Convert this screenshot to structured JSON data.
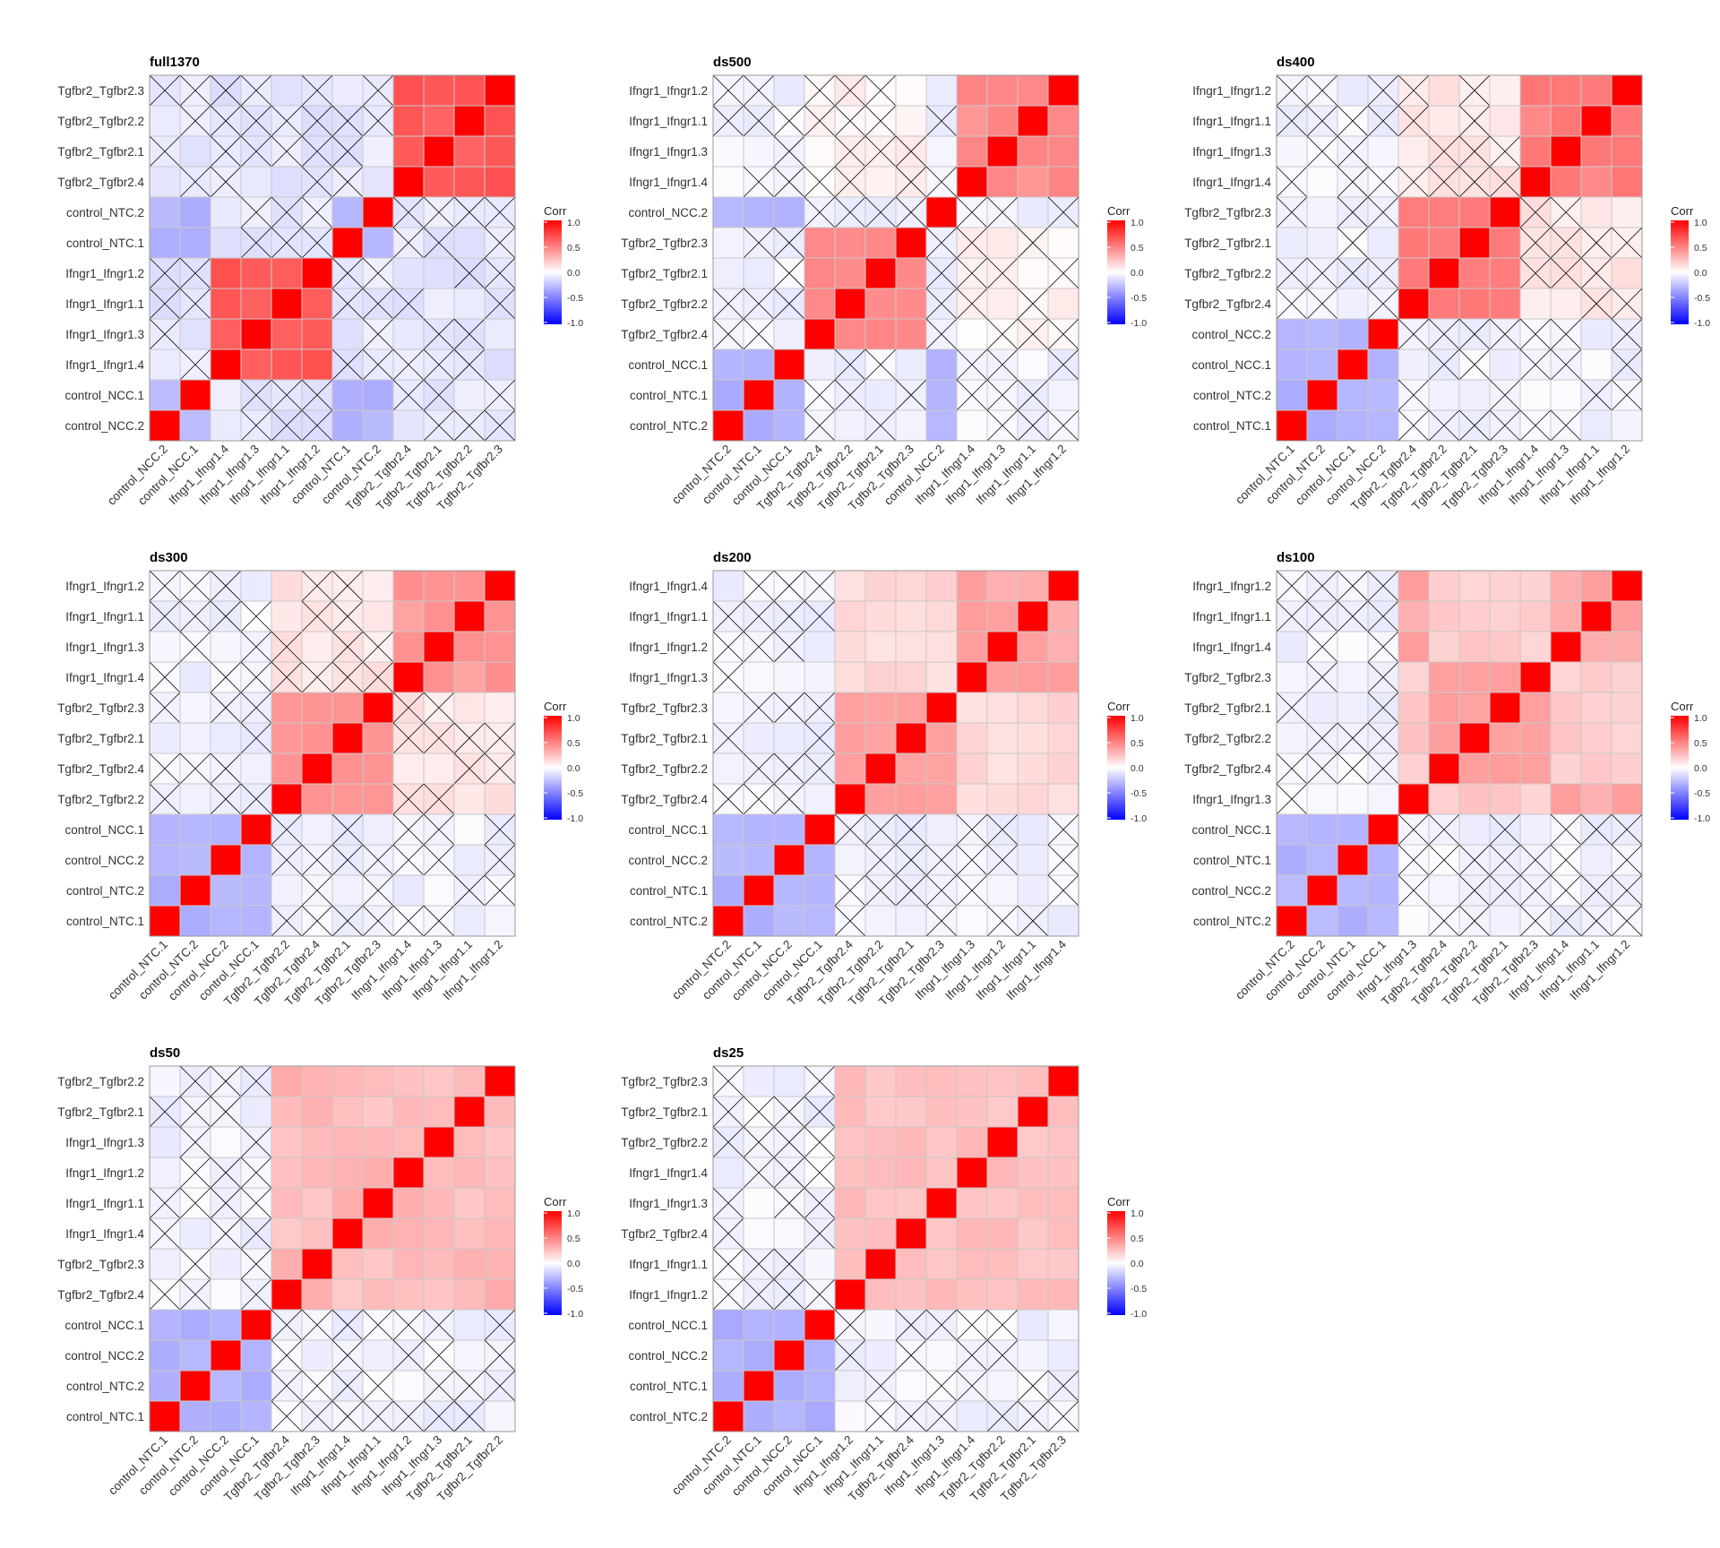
{
  "figure": {
    "legend_title": "Corr",
    "legend_ticks": [
      "1.0",
      "0.5",
      "0.0",
      "-0.5",
      "-1.0"
    ],
    "colors": {
      "high": "#ff0000",
      "mid": "#ffffff",
      "low": "#0000ff",
      "grid": "#c8c8c8",
      "cross": "#000000"
    }
  },
  "chart_data": [
    {
      "type": "heatmap",
      "title": "full1370",
      "rows_top_to_bottom": [
        "Tgfbr2_Tgfbr2.3",
        "Tgfbr2_Tgfbr2.2",
        "Tgfbr2_Tgfbr2.1",
        "Tgfbr2_Tgfbr2.4",
        "control_NTC.2",
        "control_NTC.1",
        "Ifngr1_Ifngr1.2",
        "Ifngr1_Ifngr1.1",
        "Ifngr1_Ifngr1.3",
        "Ifngr1_Ifngr1.4",
        "control_NCC.1",
        "control_NCC.2"
      ],
      "columns": [
        "control_NCC.2",
        "control_NCC.1",
        "Ifngr1_Ifngr1.4",
        "Ifngr1_Ifngr1.3",
        "Ifngr1_Ifngr1.1",
        "Ifngr1_Ifngr1.2",
        "control_NTC.1",
        "control_NTC.2",
        "Tgfbr2_Tgfbr2.4",
        "Tgfbr2_Tgfbr2.1",
        "Tgfbr2_Tgfbr2.2",
        "Tgfbr2_Tgfbr2.3"
      ],
      "ncc_ntc_corr": -0.3,
      "control_target_corr": -0.1,
      "within_block_corr": 0.65,
      "between_target_corr": -0.1,
      "insignificant_mark": "X",
      "legend": "right",
      "colorscale_range": [
        -1,
        1
      ]
    },
    {
      "type": "heatmap",
      "title": "ds500",
      "rows_top_to_bottom": [
        "Ifngr1_Ifngr1.2",
        "Ifngr1_Ifngr1.1",
        "Ifngr1_Ifngr1.3",
        "Ifngr1_Ifngr1.4",
        "control_NCC.2",
        "Tgfbr2_Tgfbr2.3",
        "Tgfbr2_Tgfbr2.1",
        "Tgfbr2_Tgfbr2.2",
        "Tgfbr2_Tgfbr2.4",
        "control_NCC.1",
        "control_NTC.1",
        "control_NTC.2"
      ],
      "columns": [
        "control_NTC.2",
        "control_NTC.1",
        "control_NCC.1",
        "Tgfbr2_Tgfbr2.4",
        "Tgfbr2_Tgfbr2.2",
        "Tgfbr2_Tgfbr2.1",
        "Tgfbr2_Tgfbr2.3",
        "control_NCC.2",
        "Ifngr1_Ifngr1.4",
        "Ifngr1_Ifngr1.3",
        "Ifngr1_Ifngr1.1",
        "Ifngr1_Ifngr1.2"
      ],
      "ncc_ntc_corr": -0.3,
      "control_target_corr": -0.05,
      "within_block_corr": 0.45,
      "between_target_corr": 0.05,
      "insignificant_mark": "X",
      "legend": "right",
      "colorscale_range": [
        -1,
        1
      ]
    },
    {
      "type": "heatmap",
      "title": "ds400",
      "rows_top_to_bottom": [
        "Ifngr1_Ifngr1.2",
        "Ifngr1_Ifngr1.1",
        "Ifngr1_Ifngr1.3",
        "Ifngr1_Ifngr1.4",
        "Tgfbr2_Tgfbr2.3",
        "Tgfbr2_Tgfbr2.1",
        "Tgfbr2_Tgfbr2.2",
        "Tgfbr2_Tgfbr2.4",
        "control_NCC.2",
        "control_NCC.1",
        "control_NTC.2",
        "control_NTC.1"
      ],
      "columns": [
        "control_NTC.1",
        "control_NTC.2",
        "control_NCC.1",
        "control_NCC.2",
        "Tgfbr2_Tgfbr2.4",
        "Tgfbr2_Tgfbr2.2",
        "Tgfbr2_Tgfbr2.1",
        "Tgfbr2_Tgfbr2.3",
        "Ifngr1_Ifngr1.4",
        "Ifngr1_Ifngr1.3",
        "Ifngr1_Ifngr1.1",
        "Ifngr1_Ifngr1.2"
      ],
      "ncc_ntc_corr": -0.3,
      "control_target_corr": -0.05,
      "within_block_corr": 0.5,
      "between_target_corr": 0.1,
      "insignificant_mark": "X",
      "legend": "right",
      "colorscale_range": [
        -1,
        1
      ]
    },
    {
      "type": "heatmap",
      "title": "ds300",
      "rows_top_to_bottom": [
        "Ifngr1_Ifngr1.2",
        "Ifngr1_Ifngr1.1",
        "Ifngr1_Ifngr1.3",
        "Ifngr1_Ifngr1.4",
        "Tgfbr2_Tgfbr2.3",
        "Tgfbr2_Tgfbr2.1",
        "Tgfbr2_Tgfbr2.4",
        "Tgfbr2_Tgfbr2.2",
        "control_NCC.1",
        "control_NCC.2",
        "control_NTC.2",
        "control_NTC.1"
      ],
      "columns": [
        "control_NTC.1",
        "control_NTC.2",
        "control_NCC.2",
        "control_NCC.1",
        "Tgfbr2_Tgfbr2.2",
        "Tgfbr2_Tgfbr2.4",
        "Tgfbr2_Tgfbr2.1",
        "Tgfbr2_Tgfbr2.3",
        "Ifngr1_Ifngr1.4",
        "Ifngr1_Ifngr1.3",
        "Ifngr1_Ifngr1.1",
        "Ifngr1_Ifngr1.2"
      ],
      "ncc_ntc_corr": -0.3,
      "control_target_corr": -0.05,
      "within_block_corr": 0.4,
      "between_target_corr": 0.1,
      "insignificant_mark": "X",
      "legend": "right",
      "colorscale_range": [
        -1,
        1
      ]
    },
    {
      "type": "heatmap",
      "title": "ds200",
      "rows_top_to_bottom": [
        "Ifngr1_Ifngr1.4",
        "Ifngr1_Ifngr1.1",
        "Ifngr1_Ifngr1.2",
        "Ifngr1_Ifngr1.3",
        "Tgfbr2_Tgfbr2.3",
        "Tgfbr2_Tgfbr2.1",
        "Tgfbr2_Tgfbr2.2",
        "Tgfbr2_Tgfbr2.4",
        "control_NCC.1",
        "control_NCC.2",
        "control_NTC.1",
        "control_NTC.2"
      ],
      "columns": [
        "control_NTC.2",
        "control_NTC.1",
        "control_NCC.2",
        "control_NCC.1",
        "Tgfbr2_Tgfbr2.4",
        "Tgfbr2_Tgfbr2.2",
        "Tgfbr2_Tgfbr2.1",
        "Tgfbr2_Tgfbr2.3",
        "Ifngr1_Ifngr1.3",
        "Ifngr1_Ifngr1.2",
        "Ifngr1_Ifngr1.1",
        "Ifngr1_Ifngr1.4"
      ],
      "ncc_ntc_corr": -0.3,
      "control_target_corr": -0.05,
      "within_block_corr": 0.35,
      "between_target_corr": 0.15,
      "insignificant_mark": "X",
      "legend": "right",
      "colorscale_range": [
        -1,
        1
      ]
    },
    {
      "type": "heatmap",
      "title": "ds100",
      "rows_top_to_bottom": [
        "Ifngr1_Ifngr1.2",
        "Ifngr1_Ifngr1.1",
        "Ifngr1_Ifngr1.4",
        "Tgfbr2_Tgfbr2.3",
        "Tgfbr2_Tgfbr2.1",
        "Tgfbr2_Tgfbr2.2",
        "Tgfbr2_Tgfbr2.4",
        "Ifngr1_Ifngr1.3",
        "control_NCC.1",
        "control_NTC.1",
        "control_NCC.2",
        "control_NTC.2"
      ],
      "columns": [
        "control_NTC.2",
        "control_NCC.2",
        "control_NTC.1",
        "control_NCC.1",
        "Ifngr1_Ifngr1.3",
        "Tgfbr2_Tgfbr2.4",
        "Tgfbr2_Tgfbr2.2",
        "Tgfbr2_Tgfbr2.1",
        "Tgfbr2_Tgfbr2.3",
        "Ifngr1_Ifngr1.4",
        "Ifngr1_Ifngr1.1",
        "Ifngr1_Ifngr1.2"
      ],
      "ncc_ntc_corr": -0.3,
      "control_target_corr": -0.05,
      "within_block_corr": 0.35,
      "between_target_corr": 0.2,
      "insignificant_mark": "X",
      "legend": "right",
      "colorscale_range": [
        -1,
        1
      ]
    },
    {
      "type": "heatmap",
      "title": "ds50",
      "rows_top_to_bottom": [
        "Tgfbr2_Tgfbr2.2",
        "Tgfbr2_Tgfbr2.1",
        "Ifngr1_Ifngr1.3",
        "Ifngr1_Ifngr1.2",
        "Ifngr1_Ifngr1.1",
        "Ifngr1_Ifngr1.4",
        "Tgfbr2_Tgfbr2.3",
        "Tgfbr2_Tgfbr2.4",
        "control_NCC.1",
        "control_NCC.2",
        "control_NTC.2",
        "control_NTC.1"
      ],
      "columns": [
        "control_NTC.1",
        "control_NTC.2",
        "control_NCC.2",
        "control_NCC.1",
        "Tgfbr2_Tgfbr2.4",
        "Tgfbr2_Tgfbr2.3",
        "Ifngr1_Ifngr1.4",
        "Ifngr1_Ifngr1.1",
        "Ifngr1_Ifngr1.2",
        "Ifngr1_Ifngr1.3",
        "Tgfbr2_Tgfbr2.1",
        "Tgfbr2_Tgfbr2.2"
      ],
      "ncc_ntc_corr": -0.3,
      "control_target_corr": -0.05,
      "within_block_corr": 0.3,
      "between_target_corr": 0.25,
      "insignificant_mark": "X",
      "legend": "right",
      "colorscale_range": [
        -1,
        1
      ]
    },
    {
      "type": "heatmap",
      "title": "ds25",
      "rows_top_to_bottom": [
        "Tgfbr2_Tgfbr2.3",
        "Tgfbr2_Tgfbr2.1",
        "Tgfbr2_Tgfbr2.2",
        "Ifngr1_Ifngr1.4",
        "Ifngr1_Ifngr1.3",
        "Tgfbr2_Tgfbr2.4",
        "Ifngr1_Ifngr1.1",
        "Ifngr1_Ifngr1.2",
        "control_NCC.1",
        "control_NCC.2",
        "control_NTC.1",
        "control_NTC.2"
      ],
      "columns": [
        "control_NTC.2",
        "control_NTC.1",
        "control_NCC.2",
        "control_NCC.1",
        "Ifngr1_Ifngr1.2",
        "Ifngr1_Ifngr1.1",
        "Tgfbr2_Tgfbr2.4",
        "Ifngr1_Ifngr1.3",
        "Ifngr1_Ifngr1.4",
        "Tgfbr2_Tgfbr2.2",
        "Tgfbr2_Tgfbr2.1",
        "Tgfbr2_Tgfbr2.3"
      ],
      "ncc_ntc_corr": -0.3,
      "control_target_corr": -0.05,
      "within_block_corr": 0.25,
      "between_target_corr": 0.25,
      "insignificant_mark": "X",
      "legend": "right",
      "colorscale_range": [
        -1,
        1
      ]
    }
  ]
}
